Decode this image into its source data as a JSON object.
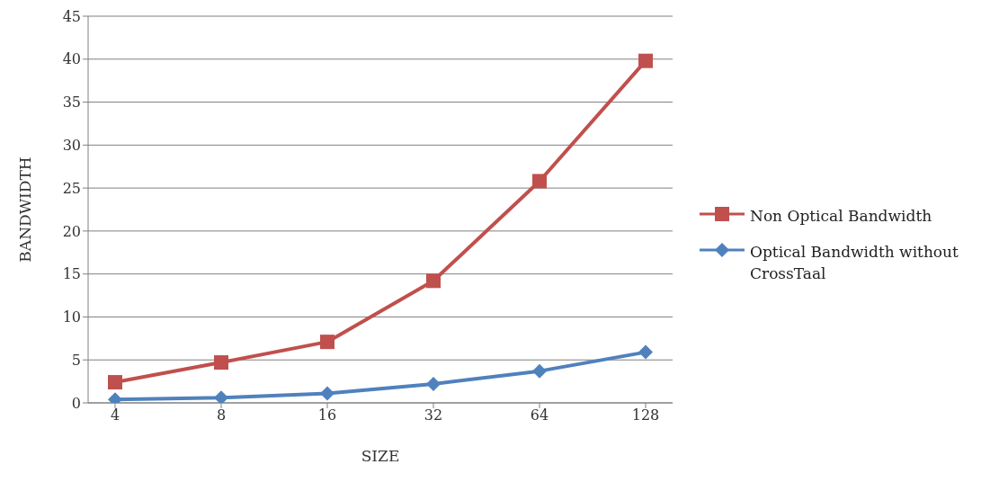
{
  "chart_data": {
    "type": "line",
    "xlabel": "SIZE",
    "ylabel": "BANDWIDTH",
    "categories": [
      "4",
      "8",
      "16",
      "32",
      "64",
      "128"
    ],
    "series": [
      {
        "name": "Non Optical Bandwidth",
        "color": "#c0504d",
        "marker": "square",
        "values": [
          2.4,
          4.7,
          7.1,
          14.2,
          25.8,
          39.8
        ]
      },
      {
        "name": "Optical Bandwidth without CrossTaal",
        "color": "#4f81bd",
        "marker": "diamond",
        "values": [
          0.4,
          0.6,
          1.1,
          2.2,
          3.7,
          5.9
        ]
      }
    ],
    "ylim": [
      0,
      45
    ],
    "yticks": [
      0,
      5,
      10,
      15,
      20,
      25,
      30,
      35,
      40,
      45
    ],
    "grid": "y",
    "legend": "right"
  }
}
